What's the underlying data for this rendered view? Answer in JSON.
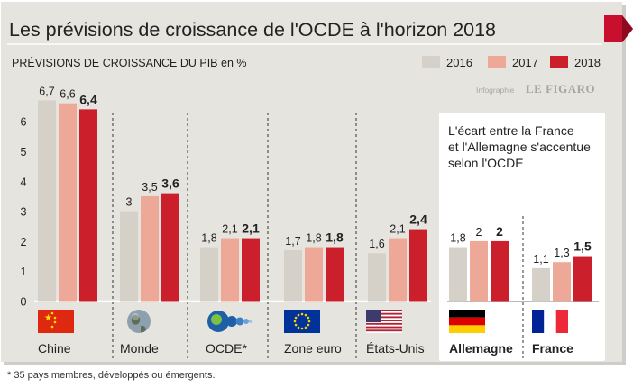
{
  "title": "Les prévisions de croissance de l'OCDE à l'horizon 2018",
  "subtitle": "PRÉVISIONS DE CROISSANCE DU PIB en %",
  "credit": "Infographie LE FIGARO",
  "footnote": "* 35 pays membres, développés ou émergents.",
  "inset_text": [
    "L'écart entre la France",
    "et l'Allemagne s'accentue",
    "selon l'OCDE"
  ],
  "colors": {
    "y2016": "#d6d1c8",
    "y2017": "#eea898",
    "y2018": "#cc1f2c",
    "panel": "#e6e4de",
    "accent": "#c8102e"
  },
  "chart_data": {
    "type": "bar",
    "title": "PRÉVISIONS DE CROISSANCE DU PIB en %",
    "ylim": [
      0,
      7
    ],
    "yticks": [
      "0",
      "1",
      "2",
      "3",
      "4",
      "5",
      "6"
    ],
    "legend": [
      "2016",
      "2017",
      "2018"
    ],
    "legend_position": "top-right",
    "grid": false,
    "categories": [
      "Chine",
      "Monde",
      "OCDE*",
      "Zone euro",
      "États-Unis",
      "Allemagne",
      "France"
    ],
    "category_icons": [
      "china-flag-icon",
      "globe-icon",
      "oecd-logo-icon",
      "eu-flag-icon",
      "us-flag-icon",
      "germany-flag-icon",
      "france-flag-icon"
    ],
    "series": [
      {
        "name": "2016",
        "values": [
          6.7,
          3,
          1.8,
          1.7,
          1.6,
          1.8,
          1.1
        ],
        "labels": [
          "6,7",
          "3",
          "1,8",
          "1,7",
          "1,6",
          "1,8",
          "1,1"
        ]
      },
      {
        "name": "2017",
        "values": [
          6.6,
          3.5,
          2.1,
          1.8,
          2.1,
          2,
          1.3
        ],
        "labels": [
          "6,6",
          "3,5",
          "2,1",
          "1,8",
          "2,1",
          "2",
          "1,3"
        ]
      },
      {
        "name": "2018",
        "values": [
          6.4,
          3.6,
          2.1,
          1.8,
          2.4,
          2,
          1.5
        ],
        "labels": [
          "6,4",
          "3,6",
          "2,1",
          "1,8",
          "2,4",
          "2",
          "1,5"
        ]
      }
    ]
  }
}
